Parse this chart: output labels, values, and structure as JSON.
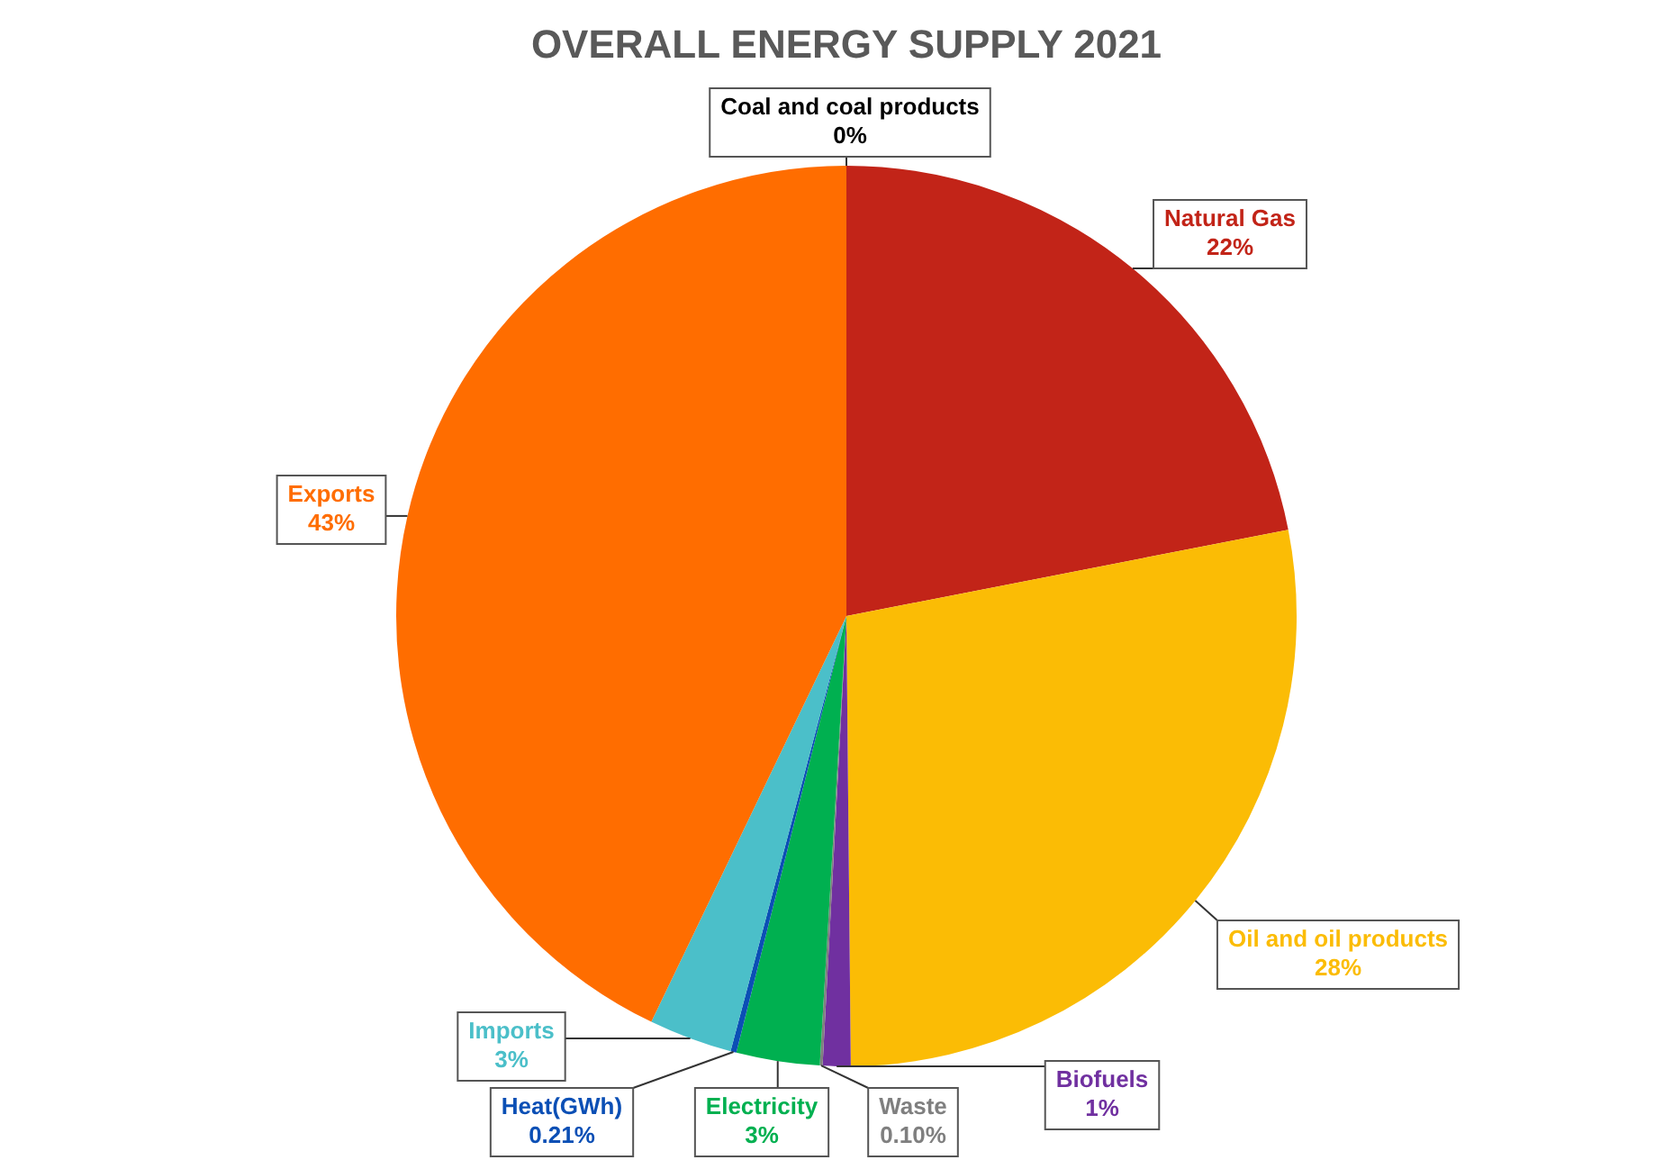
{
  "chart_data": {
    "type": "pie",
    "title": "OVERALL ENERGY SUPPLY 2021",
    "categories": [
      "Coal and coal products",
      "Natural Gas",
      "Oil and oil products",
      "Biofuels",
      "Waste",
      "Electricity",
      "Heat(GWh)",
      "Imports",
      "Exports"
    ],
    "values": [
      0,
      22,
      28,
      1,
      0.1,
      3,
      0.21,
      3,
      43
    ],
    "value_labels": [
      "0%",
      "22%",
      "28%",
      "1%",
      "0.10%",
      "3%",
      "0.21%",
      "3%",
      "43%"
    ],
    "colors": [
      "#000000",
      "#c22418",
      "#fbbc05",
      "#7030a0",
      "#7f7f7f",
      "#00b050",
      "#0b4fb5",
      "#4bbfc9",
      "#ff6d00"
    ],
    "legend": false
  }
}
